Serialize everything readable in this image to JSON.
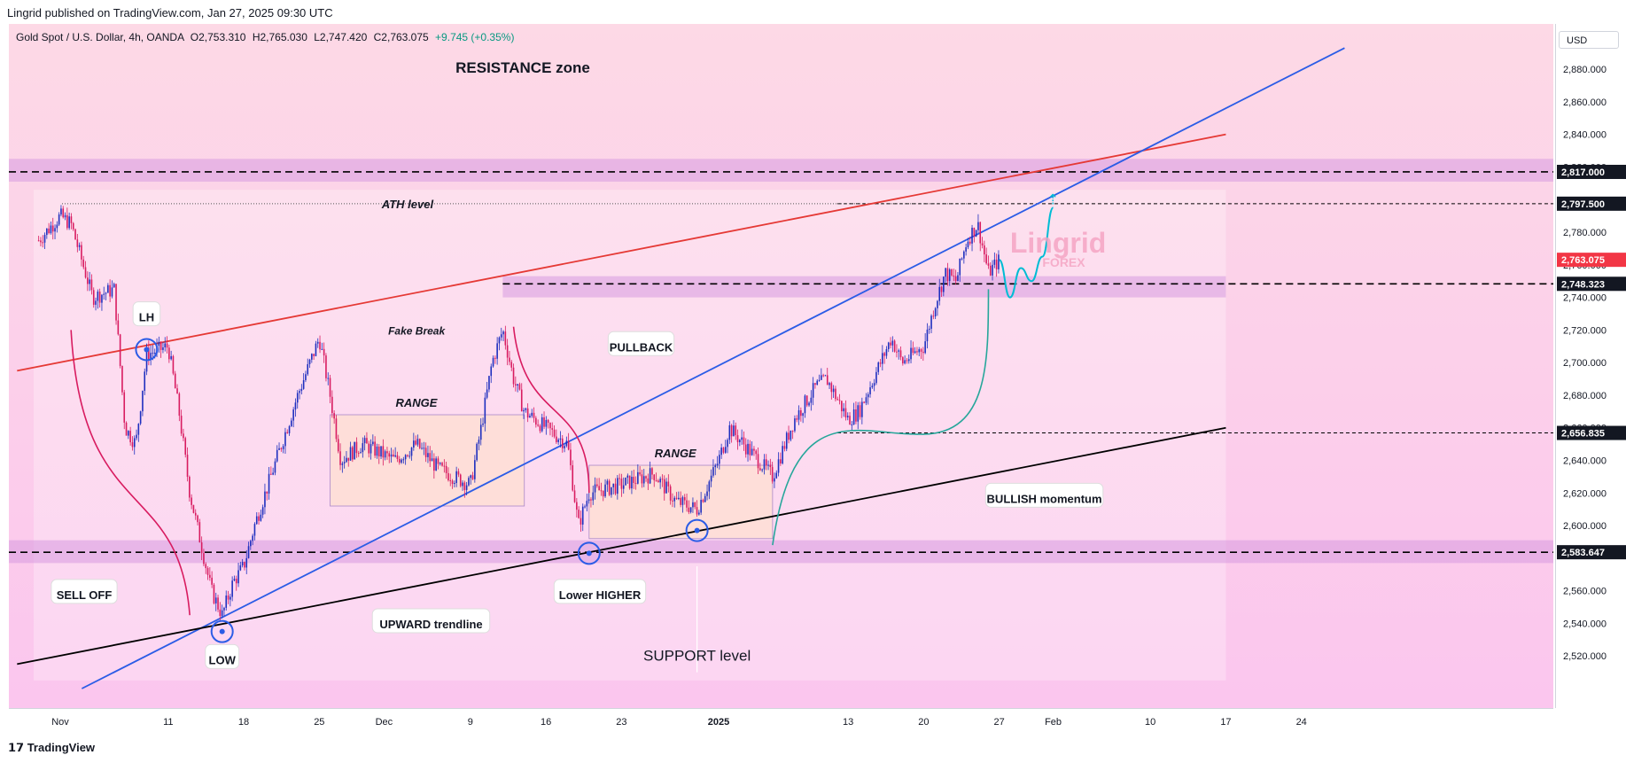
{
  "header": {
    "published_text": "Lingrid published on TradingView.com, Jan 27, 2025 09:30 UTC"
  },
  "symbol": {
    "name": "Gold Spot / U.S. Dollar, 4h, OANDA",
    "open": "O2,753.310",
    "high": "H2,765.030",
    "low": "L2,747.420",
    "close": "C2,763.075",
    "change": "+9.745 (+0.35%)"
  },
  "currency_button": "USD",
  "footer": {
    "logo_text": "TradingView"
  },
  "watermark": {
    "line1": "Lingrid",
    "line2": "FOREX"
  },
  "colors": {
    "background_top": "#fdd9e6",
    "background_bottom": "#fbc6ee",
    "zone": "#d79be0",
    "candle_up": "#1e2fbf",
    "candle_down": "#d81b60",
    "blue_line": "#2b5ce6",
    "red_line": "#e53935",
    "black_line": "#000000",
    "green_curve": "#26a69a",
    "cyan_path": "#00bcd4",
    "current_price_bg": "#f23645"
  },
  "chart_data": {
    "type": "candlestick",
    "timeframe": "4h",
    "x_tick_labels": [
      "Nov",
      "11",
      "18",
      "25",
      "Dec",
      "9",
      "16",
      "23",
      "2025",
      "13",
      "20",
      "27",
      "Feb",
      "10",
      "17",
      "24"
    ],
    "y_tick_labels": [
      "2,880.000",
      "2,860.000",
      "2,840.000",
      "2,820.000",
      "2,780.000",
      "2,760.000",
      "2,740.000",
      "2,720.000",
      "2,700.000",
      "2,680.000",
      "2,660.000",
      "2,640.000",
      "2,620.000",
      "2,600.000",
      "2,560.000",
      "2,540.000",
      "2,520.000"
    ],
    "y_ticks": [
      2880,
      2860,
      2840,
      2820,
      2780,
      2760,
      2740,
      2720,
      2700,
      2680,
      2660,
      2640,
      2620,
      2600,
      2560,
      2540,
      2520
    ],
    "ylim": [
      2500,
      2898
    ],
    "price_labels": [
      {
        "text": "2,817.000",
        "value": 2817.0,
        "style": "dark"
      },
      {
        "text": "2,797.500",
        "value": 2797.5,
        "style": "dark"
      },
      {
        "text": "2,763.075",
        "value": 2763.075,
        "style": "current"
      },
      {
        "text": "2,748.323",
        "value": 2748.323,
        "style": "dark"
      },
      {
        "text": "2,656.835",
        "value": 2656.835,
        "style": "dark"
      },
      {
        "text": "2,583.647",
        "value": 2583.647,
        "style": "dark"
      }
    ],
    "zones": [
      {
        "from": 2811,
        "to": 2825
      },
      {
        "from": 2740,
        "to": 2753
      },
      {
        "from": 2577,
        "to": 2591
      }
    ],
    "price_path": [
      [
        "2024-10-30",
        2775
      ],
      [
        "2024-11-01",
        2790
      ],
      [
        "2024-11-02",
        2785
      ],
      [
        "2024-11-04",
        2740
      ],
      [
        "2024-11-06",
        2745
      ],
      [
        "2024-11-07",
        2660
      ],
      [
        "2024-11-08",
        2650
      ],
      [
        "2024-11-09",
        2705
      ],
      [
        "2024-11-11",
        2710
      ],
      [
        "2024-11-12",
        2670
      ],
      [
        "2024-11-13",
        2620
      ],
      [
        "2024-11-14",
        2590
      ],
      [
        "2024-11-15",
        2560
      ],
      [
        "2024-11-16",
        2545
      ],
      [
        "2024-11-17",
        2565
      ],
      [
        "2024-11-18",
        2575
      ],
      [
        "2024-11-19",
        2600
      ],
      [
        "2024-11-21",
        2640
      ],
      [
        "2024-11-23",
        2680
      ],
      [
        "2024-11-25",
        2715
      ],
      [
        "2024-11-26",
        2680
      ],
      [
        "2024-11-27",
        2640
      ],
      [
        "2024-11-29",
        2650
      ],
      [
        "2024-12-02",
        2640
      ],
      [
        "2024-12-04",
        2650
      ],
      [
        "2024-12-06",
        2635
      ],
      [
        "2024-12-09",
        2625
      ],
      [
        "2024-12-10",
        2660
      ],
      [
        "2024-12-11",
        2700
      ],
      [
        "2024-12-12",
        2720
      ],
      [
        "2024-12-13",
        2690
      ],
      [
        "2024-12-14",
        2670
      ],
      [
        "2024-12-16",
        2660
      ],
      [
        "2024-12-18",
        2650
      ],
      [
        "2024-12-19",
        2600
      ],
      [
        "2024-12-20",
        2620
      ],
      [
        "2024-12-23",
        2625
      ],
      [
        "2024-12-26",
        2632
      ],
      [
        "2024-12-28",
        2615
      ],
      [
        "2024-12-30",
        2610
      ],
      [
        "2025-01-01",
        2640
      ],
      [
        "2025-01-02",
        2660
      ],
      [
        "2025-01-04",
        2645
      ],
      [
        "2025-01-06",
        2630
      ],
      [
        "2025-01-08",
        2665
      ],
      [
        "2025-01-10",
        2685
      ],
      [
        "2025-01-11",
        2690
      ],
      [
        "2025-01-13",
        2665
      ],
      [
        "2025-01-14",
        2670
      ],
      [
        "2025-01-16",
        2700
      ],
      [
        "2025-01-17",
        2715
      ],
      [
        "2025-01-18",
        2700
      ],
      [
        "2025-01-20",
        2710
      ],
      [
        "2025-01-21",
        2735
      ],
      [
        "2025-01-22",
        2755
      ],
      [
        "2025-01-23",
        2750
      ],
      [
        "2025-01-24",
        2775
      ],
      [
        "2025-01-25",
        2785
      ],
      [
        "2025-01-26",
        2755
      ],
      [
        "2025-01-27",
        2763
      ]
    ],
    "projection_path": [
      [
        "2025-01-27",
        2763
      ],
      [
        "2025-01-28",
        2740
      ],
      [
        "2025-01-29",
        2758
      ],
      [
        "2025-01-30",
        2750
      ],
      [
        "2025-01-31",
        2765
      ],
      [
        "2025-02-01",
        2795
      ]
    ],
    "trend_lines": [
      {
        "name": "red",
        "from": [
          "2024-10-28",
          2695
        ],
        "to": [
          "2025-02-17",
          2840
        ]
      },
      {
        "name": "blue",
        "from": [
          "2024-11-03",
          2500
        ],
        "to": [
          "2025-02-28",
          2893
        ]
      },
      {
        "name": "black",
        "from": [
          "2024-10-28",
          2515
        ],
        "to": [
          "2025-02-17",
          2660
        ]
      }
    ],
    "annotations": {
      "resistance": "RESISTANCE zone",
      "ath": "ATH level",
      "lh": "LH",
      "fake_break": "Fake Break",
      "range1": "RANGE",
      "range2": "RANGE",
      "pullback": "PULLBACK",
      "sell_off": "SELL OFF",
      "low": "LOW",
      "upward_trendline": "UPWARD trendline",
      "lower_higher": "Lower HIGHER",
      "support": "SUPPORT level",
      "bullish": "BULLISH momentum"
    }
  }
}
